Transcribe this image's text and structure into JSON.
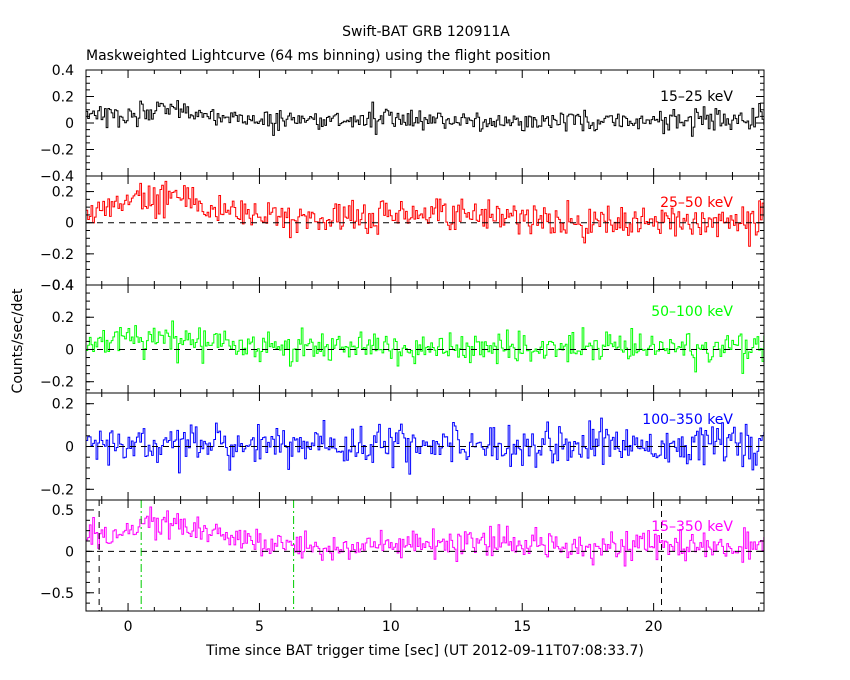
{
  "chart_data": {
    "type": "line",
    "title": "Swift-BAT GRB 120911A",
    "subtitle": "Maskweighted Lightcurve (64 ms binning) using the flight position",
    "xlabel": "Time since BAT trigger time [sec] (UT 2012-09-11T07:08:33.7)",
    "ylabel": "Counts/sec/det",
    "xlim": [
      -1.6,
      24.2
    ],
    "x_ticks": [
      0,
      5,
      10,
      15,
      20
    ],
    "bin_width_sec": 0.064,
    "vertical_markers": {
      "black_dashed": [
        -1.1,
        20.3
      ],
      "green_dashdot": [
        0.5,
        6.3
      ]
    },
    "panels": [
      {
        "band": "15–25 keV",
        "color": "#000000",
        "ylim": [
          -0.4,
          0.4
        ],
        "yticks": [
          -0.4,
          -0.2,
          0,
          0.2,
          0.4
        ],
        "ytick_labels": [
          "−0.4",
          "−0.2",
          "0",
          "0.2",
          "0.4"
        ],
        "noise": 0.042,
        "profile": [
          [
            -1.6,
            0.04
          ],
          [
            0,
            0.07
          ],
          [
            1.0,
            0.09
          ],
          [
            1.8,
            0.14
          ],
          [
            2.5,
            0.09
          ],
          [
            4.0,
            0.04
          ],
          [
            6.0,
            0.02
          ],
          [
            24.2,
            0.02
          ]
        ]
      },
      {
        "band": "25–50 keV",
        "color": "#ff0000",
        "ylim": [
          -0.4,
          0.3
        ],
        "yticks": [
          -0.4,
          -0.2,
          0,
          0.2
        ],
        "ytick_labels": [
          "−0.4",
          "−0.2",
          "0",
          "0.2"
        ],
        "noise": 0.05,
        "profile": [
          [
            -1.6,
            0.06
          ],
          [
            0,
            0.16
          ],
          [
            1.0,
            0.14
          ],
          [
            2.0,
            0.16
          ],
          [
            3.0,
            0.08
          ],
          [
            4.5,
            0.04
          ],
          [
            6.0,
            0.02
          ],
          [
            15.6,
            0.05
          ],
          [
            16.5,
            0.01
          ],
          [
            24.2,
            0.01
          ]
        ]
      },
      {
        "band": "50–100 keV",
        "color": "#00ff00",
        "ylim": [
          -0.27,
          0.4
        ],
        "yticks": [
          -0.2,
          0,
          0.2,
          0.4
        ],
        "ytick_labels": [
          "−0.2",
          "0",
          "0.2",
          "0.4"
        ],
        "noise": 0.045,
        "profile": [
          [
            -1.6,
            0.03
          ],
          [
            0,
            0.07
          ],
          [
            2.0,
            0.08
          ],
          [
            3.5,
            0.03
          ],
          [
            6.0,
            0.01
          ],
          [
            24.2,
            0.01
          ]
        ]
      },
      {
        "band": "100–350 keV",
        "color": "#0000ff",
        "ylim": [
          -0.25,
          0.25
        ],
        "yticks": [
          -0.2,
          0,
          0.2
        ],
        "ytick_labels": [
          "−0.2",
          "0",
          "0.2"
        ],
        "noise": 0.045,
        "profile": [
          [
            -1.6,
            0.01
          ],
          [
            24.2,
            0.01
          ]
        ]
      },
      {
        "band": "15–350 keV",
        "color": "#ff00ff",
        "ylim": [
          -0.72,
          0.62
        ],
        "yticks": [
          -0.5,
          0,
          0.5
        ],
        "ytick_labels": [
          "−0.5",
          "0",
          "0.5"
        ],
        "noise": 0.085,
        "profile": [
          [
            -1.6,
            0.15
          ],
          [
            -0.3,
            0.16
          ],
          [
            0,
            0.32
          ],
          [
            1.0,
            0.32
          ],
          [
            2.0,
            0.33
          ],
          [
            3.0,
            0.2
          ],
          [
            5.0,
            0.1
          ],
          [
            7.0,
            0.05
          ],
          [
            15.6,
            0.09
          ],
          [
            24.2,
            0.04
          ]
        ]
      }
    ]
  }
}
